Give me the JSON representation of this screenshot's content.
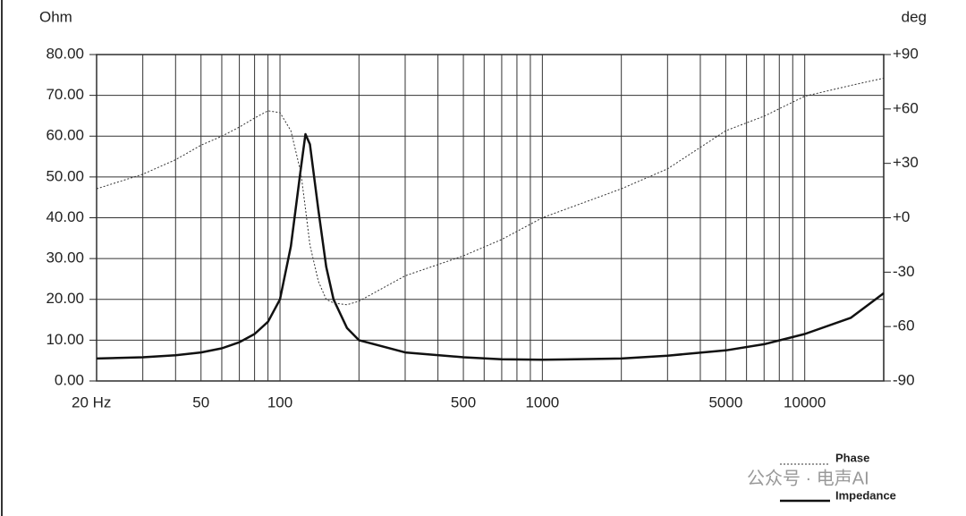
{
  "chart_data": {
    "type": "line",
    "y_unit": "Ohm",
    "y2_unit": "deg",
    "x": [
      20,
      30,
      40,
      50,
      60,
      70,
      80,
      90,
      100,
      110,
      120,
      125,
      130,
      140,
      150,
      160,
      180,
      200,
      300,
      500,
      700,
      1000,
      2000,
      3000,
      5000,
      7000,
      10000,
      15000,
      20000
    ],
    "series": [
      {
        "name": "Impedance",
        "color": "#111111",
        "style": "solid",
        "axis": "y",
        "values": [
          5.5,
          5.8,
          6.3,
          7.0,
          8.0,
          9.5,
          11.5,
          14.5,
          20,
          33,
          52,
          60.5,
          58,
          42,
          28,
          20,
          13,
          10,
          7,
          5.8,
          5.3,
          5.2,
          5.5,
          6.2,
          7.5,
          9,
          11.5,
          15.5,
          21.5
        ]
      },
      {
        "name": "Phase",
        "color": "#333333",
        "style": "dotted",
        "axis": "y2",
        "values": [
          16,
          24,
          32,
          40,
          45,
          50,
          55,
          59,
          58,
          48,
          25,
          5,
          -15,
          -35,
          -45,
          -47,
          -48,
          -46,
          -32,
          -21,
          -12,
          0,
          16,
          27,
          48,
          56,
          67,
          73,
          77
        ]
      }
    ],
    "xlim": [
      20,
      20000
    ],
    "log_x": true,
    "xticks": [
      {
        "value": 20,
        "label": "20 Hz"
      },
      50,
      100,
      500,
      1000,
      5000,
      10000
    ],
    "x_minor_grid": [
      30,
      40,
      60,
      70,
      80,
      90,
      200,
      300,
      400,
      600,
      700,
      800,
      900,
      2000,
      3000,
      4000,
      6000,
      7000,
      8000,
      9000
    ],
    "ylim": [
      0,
      80
    ],
    "yticks": [
      {
        "value": 0,
        "label": "0.00"
      },
      {
        "value": 10,
        "label": "10.00"
      },
      {
        "value": 20,
        "label": "20.00"
      },
      {
        "value": 30,
        "label": "30.00"
      },
      {
        "value": 40,
        "label": "40.00"
      },
      {
        "value": 50,
        "label": "50.00"
      },
      {
        "value": 60,
        "label": "60.00"
      },
      {
        "value": 70,
        "label": "70.00"
      },
      {
        "value": 80,
        "label": "80.00"
      }
    ],
    "y2lim": [
      -90,
      90
    ],
    "y2ticks": [
      {
        "value": 90,
        "label": "+90"
      },
      {
        "value": 60,
        "label": "+60"
      },
      {
        "value": 30,
        "label": "+30"
      },
      {
        "value": 0,
        "label": "+0"
      },
      -30,
      -60,
      -90
    ],
    "grid": true,
    "legend": "lower right",
    "watermark": "公众号 · 电声AI"
  }
}
